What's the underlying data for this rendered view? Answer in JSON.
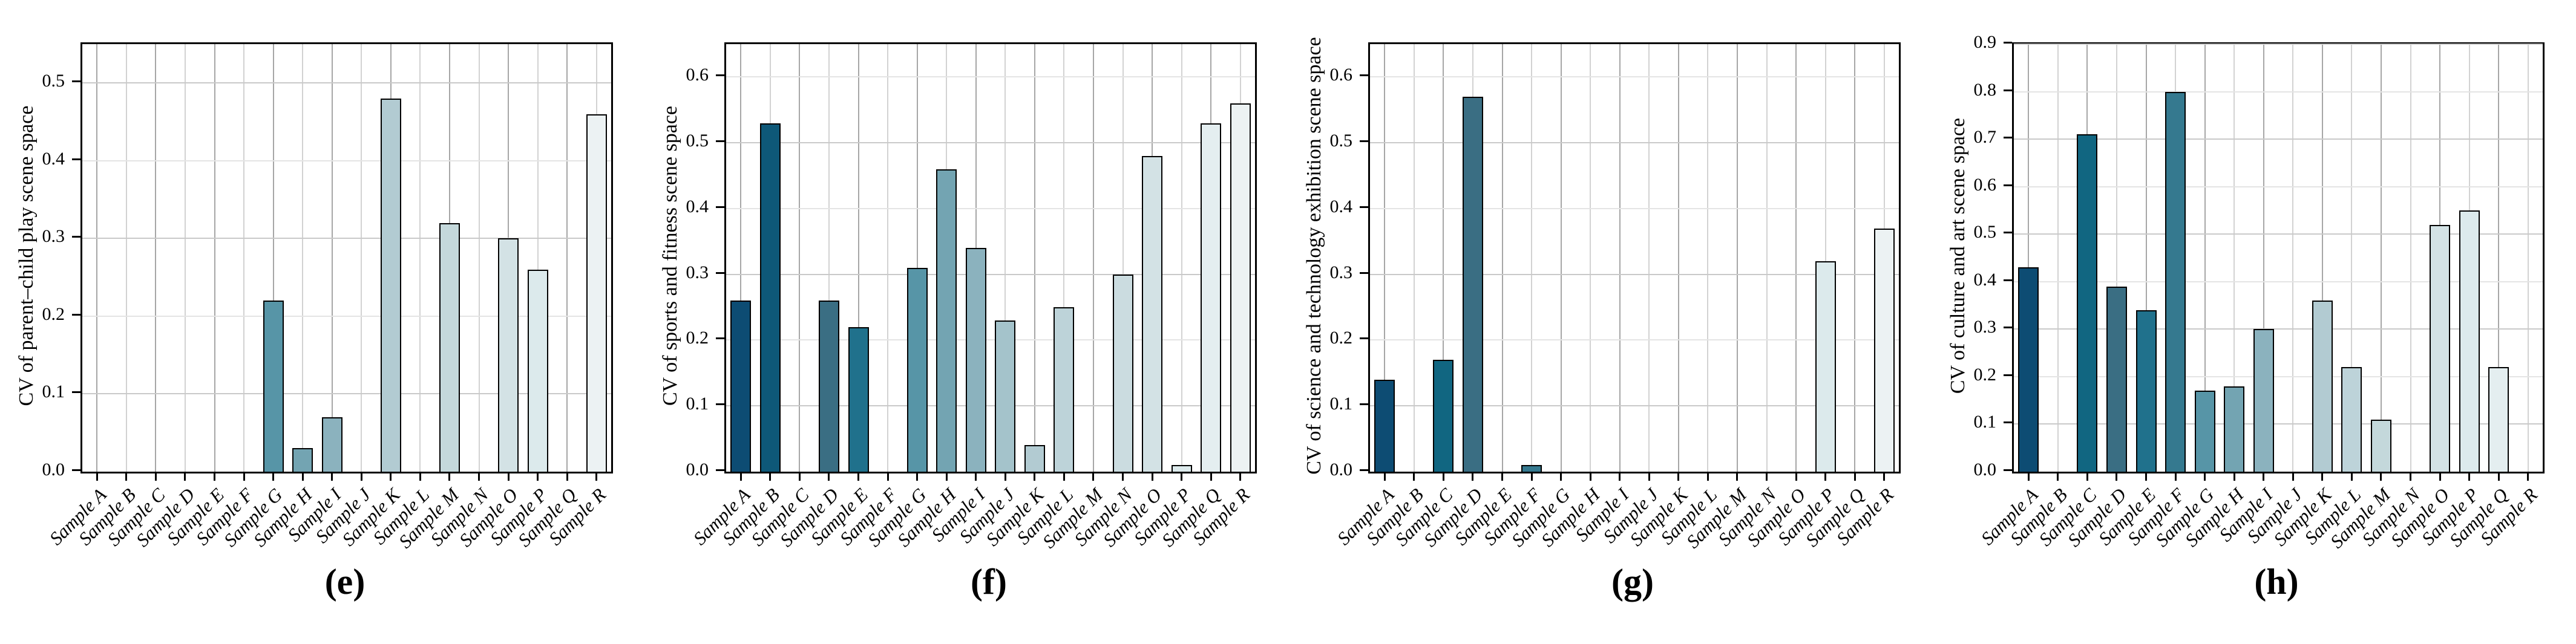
{
  "samples": [
    "Sample A",
    "Sample B",
    "Sample C",
    "Sample D",
    "Sample E",
    "Sample F",
    "Sample G",
    "Sample H",
    "Sample I",
    "Sample J",
    "Sample K",
    "Sample L",
    "Sample M",
    "Sample N",
    "Sample O",
    "Sample P",
    "Sample Q",
    "Sample R"
  ],
  "palette": [
    "#0d4c73",
    "#0e5878",
    "#116681",
    "#3a6e83",
    "#20718c",
    "#35798f",
    "#5795a7",
    "#73a4b2",
    "#8bb2be",
    "#a4c3cb",
    "#b2cbd2",
    "#bdd3d9",
    "#c4d8db",
    "#cbdce0",
    "#d3e2e5",
    "#dceaec",
    "#e4eef0",
    "#ecf2f3"
  ],
  "bar_edge_color": "#000000",
  "chart_data": [
    {
      "type": "bar",
      "panel": "(e)",
      "title": "",
      "xlabel": "",
      "ylabel": "CV of parent–child play scene space",
      "categories": [
        "Sample A",
        "Sample B",
        "Sample C",
        "Sample D",
        "Sample E",
        "Sample F",
        "Sample G",
        "Sample H",
        "Sample I",
        "Sample J",
        "Sample K",
        "Sample L",
        "Sample M",
        "Sample N",
        "Sample O",
        "Sample P",
        "Sample Q",
        "Sample R"
      ],
      "values": [
        0,
        0,
        0,
        0,
        0,
        0,
        0.22,
        0.03,
        0.07,
        0,
        0.48,
        0,
        0.32,
        0,
        0.3,
        0.26,
        0,
        0.46
      ],
      "ylim": [
        0,
        0.55
      ],
      "yticks": [
        "0.0",
        "0.1",
        "0.2",
        "0.3",
        "0.4",
        "0.5"
      ],
      "grid": true,
      "legend": "none"
    },
    {
      "type": "bar",
      "panel": "(f)",
      "title": "",
      "xlabel": "",
      "ylabel": "CV of sports and fitness scene space",
      "categories": [
        "Sample A",
        "Sample B",
        "Sample C",
        "Sample D",
        "Sample E",
        "Sample F",
        "Sample G",
        "Sample H",
        "Sample I",
        "Sample J",
        "Sample K",
        "Sample L",
        "Sample M",
        "Sample N",
        "Sample O",
        "Sample P",
        "Sample Q",
        "Sample R"
      ],
      "values": [
        0.26,
        0.53,
        0,
        0.26,
        0.22,
        0,
        0.31,
        0.46,
        0.34,
        0.23,
        0.04,
        0.25,
        0,
        0.3,
        0.48,
        0.01,
        0.53,
        0.56
      ],
      "ylim": [
        0,
        0.65
      ],
      "yticks": [
        "0.0",
        "0.1",
        "0.2",
        "0.3",
        "0.4",
        "0.5",
        "0.6"
      ],
      "grid": true,
      "legend": "none"
    },
    {
      "type": "bar",
      "panel": "(g)",
      "title": "",
      "xlabel": "",
      "ylabel": "CV of science and technology exhibition scene space",
      "categories": [
        "Sample A",
        "Sample B",
        "Sample C",
        "Sample D",
        "Sample E",
        "Sample F",
        "Sample G",
        "Sample H",
        "Sample I",
        "Sample J",
        "Sample K",
        "Sample L",
        "Sample M",
        "Sample N",
        "Sample O",
        "Sample P",
        "Sample Q",
        "Sample R"
      ],
      "values": [
        0.14,
        0,
        0.17,
        0.57,
        0,
        0.01,
        0,
        0,
        0,
        0,
        0,
        0,
        0,
        0,
        0,
        0.32,
        0,
        0.37
      ],
      "ylim": [
        0,
        0.65
      ],
      "yticks": [
        "0.0",
        "0.1",
        "0.2",
        "0.3",
        "0.4",
        "0.5",
        "0.6"
      ],
      "grid": true,
      "legend": "none"
    },
    {
      "type": "bar",
      "panel": "(h)",
      "title": "",
      "xlabel": "",
      "ylabel": "CV of culture and art scene space",
      "categories": [
        "Sample A",
        "Sample B",
        "Sample C",
        "Sample D",
        "Sample E",
        "Sample F",
        "Sample G",
        "Sample H",
        "Sample I",
        "Sample J",
        "Sample K",
        "Sample L",
        "Sample M",
        "Sample N",
        "Sample O",
        "Sample P",
        "Sample Q",
        "Sample R"
      ],
      "values": [
        0.43,
        0,
        0.71,
        0.39,
        0.34,
        0.8,
        0.17,
        0.18,
        0.3,
        0,
        0.36,
        0.22,
        0.11,
        0,
        0.52,
        0.55,
        0.22,
        0
      ],
      "ylim": [
        0,
        0.9
      ],
      "yticks": [
        "0.0",
        "0.1",
        "0.2",
        "0.3",
        "0.4",
        "0.5",
        "0.6",
        "0.7",
        "0.8",
        "0.9"
      ],
      "grid": true,
      "legend": "none"
    }
  ]
}
